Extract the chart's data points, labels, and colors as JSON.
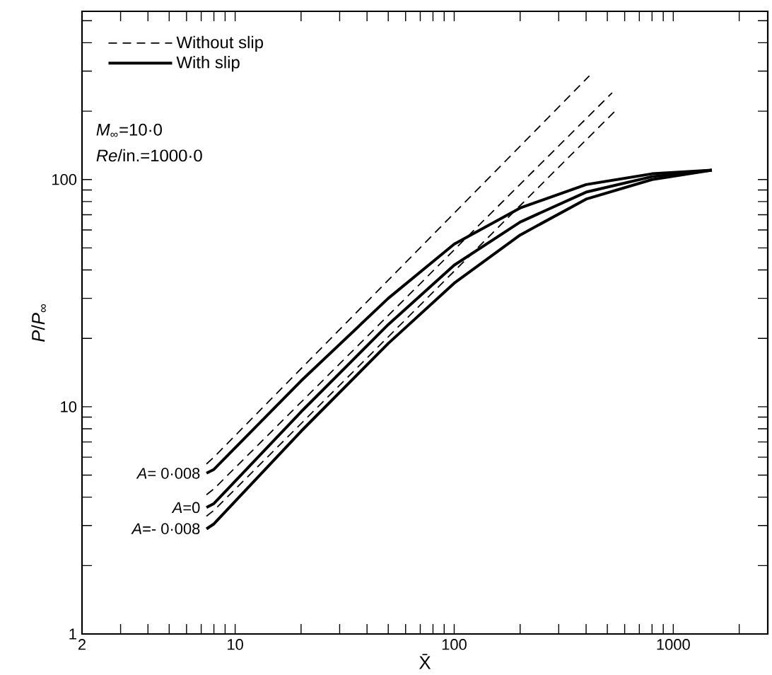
{
  "chart_data": {
    "type": "line",
    "xlabel": "X̄",
    "ylabel": "*P*/*P*$_{∞}$",
    "log": "xy",
    "xlim": [
      2,
      2700
    ],
    "ylim": [
      1,
      550
    ],
    "xticks": [
      2,
      {
        "value": 3,
        "label": null
      },
      {
        "value": 4,
        "label": null
      },
      {
        "value": 5,
        "label": null
      },
      {
        "value": 6,
        "label": null
      },
      {
        "value": 7,
        "label": null
      },
      {
        "value": 8,
        "label": null
      },
      {
        "value": 9,
        "label": null
      },
      10,
      {
        "value": 20,
        "label": null
      },
      {
        "value": 30,
        "label": null
      },
      {
        "value": 40,
        "label": null
      },
      {
        "value": 50,
        "label": null
      },
      {
        "value": 60,
        "label": null
      },
      {
        "value": 70,
        "label": null
      },
      {
        "value": 80,
        "label": null
      },
      {
        "value": 90,
        "label": null
      },
      100,
      {
        "value": 200,
        "label": null
      },
      {
        "value": 300,
        "label": null
      },
      {
        "value": 400,
        "label": null
      },
      {
        "value": 500,
        "label": null
      },
      {
        "value": 600,
        "label": null
      },
      {
        "value": 700,
        "label": null
      },
      {
        "value": 800,
        "label": null
      },
      {
        "value": 900,
        "label": null
      },
      1000,
      {
        "value": 2000,
        "label": null
      }
    ],
    "yticks": [
      1,
      {
        "value": 2,
        "label": null
      },
      {
        "value": 3,
        "label": null
      },
      {
        "value": 4,
        "label": null
      },
      {
        "value": 5,
        "label": null
      },
      {
        "value": 6,
        "label": null
      },
      {
        "value": 7,
        "label": null
      },
      {
        "value": 8,
        "label": null
      },
      {
        "value": 9,
        "label": null
      },
      10,
      {
        "value": 20,
        "label": null
      },
      {
        "value": 30,
        "label": null
      },
      {
        "value": 40,
        "label": null
      },
      {
        "value": 50,
        "label": null
      },
      {
        "value": 60,
        "label": null
      },
      {
        "value": 70,
        "label": null
      },
      {
        "value": 80,
        "label": null
      },
      {
        "value": 90,
        "label": null
      },
      100,
      {
        "value": 200,
        "label": null
      },
      {
        "value": 300,
        "label": null
      },
      {
        "value": 400,
        "label": null
      },
      {
        "value": 500,
        "label": null
      }
    ],
    "legend": "top left",
    "grid": false,
    "marker": "none",
    "series": [
      {
        "name": "Without slip",
        "color": "#000000",
        "line_style": "dashed",
        "x": [
          7.4,
          8,
          414
        ],
        "values": [
          5.6,
          6.0,
          286
        ]
      },
      {
        "name": "With slip",
        "color": "#000000",
        "line_style": "solid",
        "x": [
          7.4,
          8,
          20,
          50,
          100,
          200,
          400,
          800,
          1500
        ],
        "values": [
          5.1,
          5.3,
          13,
          30,
          52,
          75,
          95,
          106,
          110
        ]
      },
      {
        "color": "#000000",
        "line_style": "dashed",
        "x": [
          7.4,
          8,
          526
        ],
        "values": [
          4.1,
          4.35,
          241
        ]
      },
      {
        "color": "#000000",
        "line_style": "solid",
        "x": [
          7.4,
          8,
          20,
          50,
          100,
          200,
          400,
          800,
          1500
        ],
        "values": [
          3.6,
          3.75,
          9.5,
          23,
          42,
          65,
          88,
          103,
          110
        ]
      },
      {
        "color": "#000000",
        "line_style": "dashed",
        "x": [
          7.4,
          8,
          542
        ],
        "values": [
          3.3,
          3.5,
          200
        ]
      },
      {
        "color": "#000000",
        "line_style": "solid",
        "x": [
          7.4,
          8,
          20,
          50,
          100,
          200,
          400,
          800,
          1500
        ],
        "values": [
          2.9,
          3.05,
          7.8,
          19,
          35,
          57,
          82,
          100,
          110
        ]
      }
    ],
    "annotations": [
      "*M*$_{∞}$=10·0",
      "*Re*/in.=1000·0",
      "*A*= 0·008",
      "*A*=0",
      "*A*=- 0·008"
    ]
  }
}
